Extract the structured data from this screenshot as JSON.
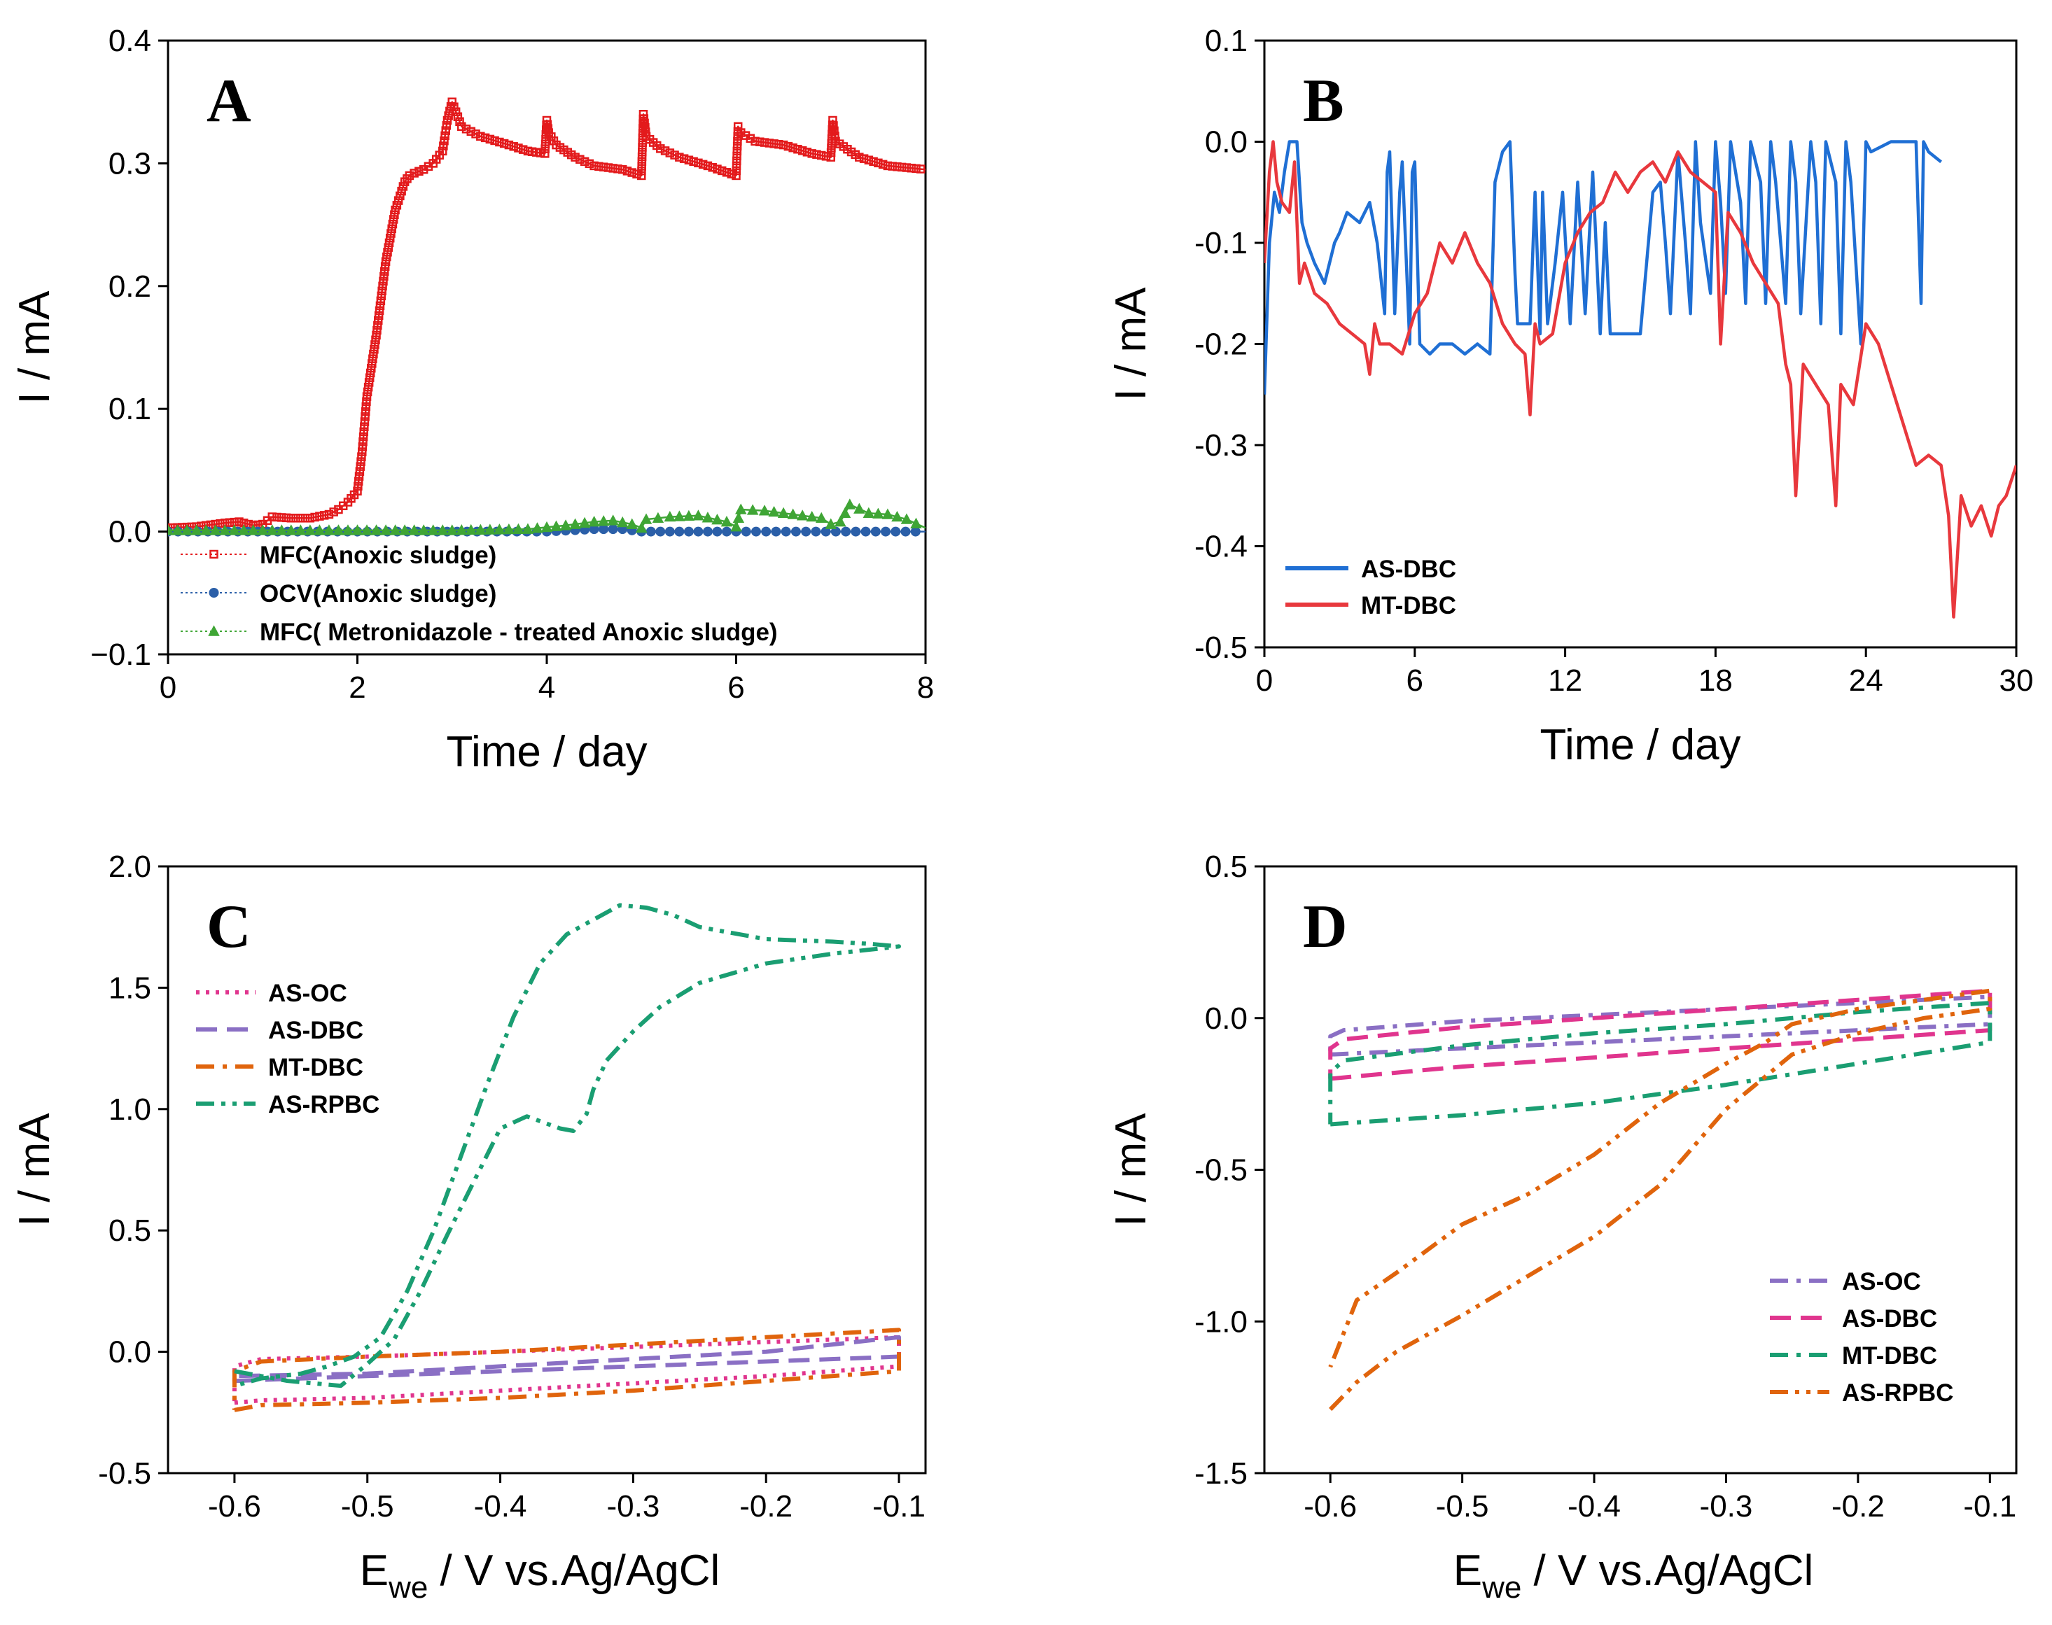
{
  "chart_data": [
    {
      "panel": "A",
      "type": "line",
      "xlabel": "Time / day",
      "ylabel": "I / mA",
      "xlim": [
        0,
        8
      ],
      "ylim": [
        -0.1,
        0.4
      ],
      "xticks": [
        "0",
        "2",
        "4",
        "6",
        "8"
      ],
      "yticks": [
        "−0.1",
        "0.0",
        "0.1",
        "0.2",
        "0.3",
        "0.4"
      ],
      "legend_position": "bottom-left",
      "series": [
        {
          "name": "MFC(Anoxic sludge)",
          "color": "#e31a1c",
          "marker": "square",
          "x": [
            0,
            0.3,
            0.6,
            0.75,
            0.9,
            1.0,
            1.1,
            1.3,
            1.5,
            1.7,
            1.8,
            1.9,
            2.0,
            2.05,
            2.1,
            2.2,
            2.3,
            2.4,
            2.5,
            2.55,
            2.6,
            2.7,
            2.8,
            2.9,
            2.95,
            3.0,
            3.1,
            3.3,
            3.6,
            3.8,
            3.98,
            4.0,
            4.02,
            4.1,
            4.3,
            4.5,
            4.8,
            5.0,
            5.02,
            5.05,
            5.2,
            5.4,
            5.7,
            6.0,
            6.02,
            6.05,
            6.2,
            6.5,
            6.8,
            7.0,
            7.02,
            7.05,
            7.3,
            7.6,
            8.0
          ],
          "y": [
            0.003,
            0.004,
            0.007,
            0.008,
            0.005,
            0.006,
            0.012,
            0.011,
            0.011,
            0.014,
            0.018,
            0.024,
            0.033,
            0.065,
            0.11,
            0.16,
            0.22,
            0.262,
            0.285,
            0.29,
            0.292,
            0.295,
            0.3,
            0.31,
            0.335,
            0.35,
            0.33,
            0.322,
            0.315,
            0.31,
            0.308,
            0.335,
            0.325,
            0.315,
            0.305,
            0.298,
            0.295,
            0.29,
            0.34,
            0.322,
            0.312,
            0.305,
            0.298,
            0.29,
            0.33,
            0.325,
            0.318,
            0.315,
            0.308,
            0.305,
            0.335,
            0.318,
            0.305,
            0.298,
            0.295
          ]
        },
        {
          "name": "OCV(Anoxic sludge)",
          "color": "#2b5fa8",
          "marker": "circle",
          "x": [
            0,
            2,
            4,
            4.5,
            4.8,
            5.0,
            6,
            8
          ],
          "y": [
            0.0,
            0.0,
            0.0,
            0.002,
            0.002,
            0.0,
            0.0,
            0.0
          ]
        },
        {
          "name": "MFC( Metronidazole - treated Anoxic sludge)",
          "color": "#3fa535",
          "marker": "triangle",
          "x": [
            0,
            1,
            2,
            3,
            3.8,
            4.2,
            4.5,
            4.7,
            4.9,
            5.0,
            5.05,
            5.3,
            5.6,
            5.9,
            6.0,
            6.05,
            6.3,
            6.6,
            6.9,
            7.0,
            7.1,
            7.2,
            7.4,
            7.6,
            7.8,
            8.0
          ],
          "y": [
            0.001,
            0.001,
            0.001,
            0.001,
            0.002,
            0.005,
            0.008,
            0.009,
            0.006,
            0.003,
            0.01,
            0.012,
            0.013,
            0.008,
            0.004,
            0.018,
            0.017,
            0.014,
            0.011,
            0.006,
            0.008,
            0.022,
            0.015,
            0.014,
            0.01,
            0.003
          ]
        }
      ]
    },
    {
      "panel": "B",
      "type": "line",
      "xlabel": "Time / day",
      "ylabel": "I / mA",
      "xlim": [
        0,
        30
      ],
      "ylim": [
        -0.5,
        0.1
      ],
      "xticks": [
        "0",
        "6",
        "12",
        "18",
        "24",
        "30"
      ],
      "yticks": [
        "-0.5",
        "-0.4",
        "-0.3",
        "-0.2",
        "-0.1",
        "0.0",
        "0.1"
      ],
      "legend_position": "bottom-left",
      "series": [
        {
          "name": "AS-DBC",
          "color": "#1f6fd4",
          "x": [
            0,
            0.2,
            0.4,
            0.6,
            0.8,
            1.0,
            1.1,
            1.3,
            1.5,
            1.7,
            2.0,
            2.4,
            2.8,
            3.0,
            3.3,
            3.8,
            4.2,
            4.5,
            4.8,
            4.9,
            5.0,
            5.2,
            5.4,
            5.5,
            5.8,
            5.9,
            6.0,
            6.2,
            6.6,
            7.0,
            7.5,
            8.0,
            8.5,
            9.0,
            9.2,
            9.5,
            9.8,
            10.0,
            10.1,
            10.3,
            10.6,
            10.8,
            11.0,
            11.1,
            11.3,
            11.6,
            11.9,
            12.2,
            12.5,
            12.8,
            13.1,
            13.4,
            13.6,
            13.8,
            14.0,
            14.5,
            15.0,
            15.5,
            15.8,
            16.0,
            16.2,
            16.5,
            16.8,
            17.0,
            17.2,
            17.4,
            17.8,
            18.0,
            18.2,
            18.4,
            18.6,
            19.0,
            19.2,
            19.4,
            19.8,
            20.0,
            20.2,
            20.4,
            20.8,
            21.0,
            21.2,
            21.4,
            21.8,
            22.0,
            22.2,
            22.4,
            22.8,
            23.0,
            23.2,
            23.4,
            23.8,
            24.0,
            24.2,
            25.0,
            26.0,
            26.2,
            26.3,
            26.5,
            27.0
          ],
          "y": [
            -0.25,
            -0.1,
            -0.05,
            -0.07,
            -0.03,
            0.0,
            0.0,
            0.0,
            -0.08,
            -0.1,
            -0.12,
            -0.14,
            -0.1,
            -0.09,
            -0.07,
            -0.08,
            -0.06,
            -0.1,
            -0.17,
            -0.03,
            -0.01,
            -0.17,
            -0.05,
            -0.02,
            -0.2,
            -0.03,
            -0.02,
            -0.2,
            -0.21,
            -0.2,
            -0.2,
            -0.21,
            -0.2,
            -0.21,
            -0.04,
            -0.01,
            0.0,
            -0.13,
            -0.18,
            -0.18,
            -0.18,
            -0.05,
            -0.19,
            -0.05,
            -0.18,
            -0.12,
            -0.05,
            -0.18,
            -0.04,
            -0.17,
            -0.03,
            -0.19,
            -0.08,
            -0.19,
            -0.19,
            -0.19,
            -0.19,
            -0.05,
            -0.04,
            -0.1,
            -0.17,
            -0.01,
            -0.1,
            -0.17,
            0.0,
            -0.08,
            -0.15,
            0.0,
            -0.06,
            -0.15,
            0.0,
            -0.06,
            -0.16,
            0.0,
            -0.04,
            -0.16,
            0.0,
            -0.04,
            -0.16,
            0.0,
            -0.04,
            -0.17,
            0.0,
            -0.04,
            -0.18,
            0.0,
            -0.04,
            -0.19,
            0.0,
            -0.04,
            -0.2,
            0.0,
            -0.01,
            0.0,
            0.0,
            -0.16,
            0.0,
            -0.01,
            -0.02
          ]
        },
        {
          "name": "MT-DBC",
          "color": "#e8383d",
          "x": [
            0,
            0.2,
            0.35,
            0.5,
            0.7,
            1.0,
            1.2,
            1.4,
            1.6,
            2.0,
            2.5,
            3.0,
            3.5,
            4.0,
            4.2,
            4.4,
            4.6,
            5.0,
            5.5,
            6.0,
            6.5,
            7.0,
            7.5,
            8.0,
            8.5,
            9.0,
            9.5,
            10.0,
            10.4,
            10.6,
            10.8,
            11.0,
            11.5,
            12.0,
            12.5,
            13.0,
            13.5,
            14.0,
            14.5,
            15.0,
            15.5,
            16.0,
            16.5,
            17.0,
            17.5,
            18.0,
            18.2,
            18.5,
            19.0,
            19.5,
            20.0,
            20.5,
            20.8,
            21.0,
            21.2,
            21.5,
            22.0,
            22.5,
            22.8,
            23.0,
            23.5,
            24.0,
            24.5,
            25.0,
            25.5,
            26.0,
            26.5,
            27.0,
            27.3,
            27.5,
            27.8,
            28.2,
            28.6,
            29.0,
            29.3,
            29.6,
            30.0
          ],
          "y": [
            -0.12,
            -0.03,
            0.0,
            -0.04,
            -0.06,
            -0.07,
            -0.02,
            -0.14,
            -0.12,
            -0.15,
            -0.16,
            -0.18,
            -0.19,
            -0.2,
            -0.23,
            -0.18,
            -0.2,
            -0.2,
            -0.21,
            -0.17,
            -0.15,
            -0.1,
            -0.12,
            -0.09,
            -0.12,
            -0.14,
            -0.18,
            -0.2,
            -0.21,
            -0.27,
            -0.18,
            -0.2,
            -0.19,
            -0.12,
            -0.09,
            -0.07,
            -0.06,
            -0.03,
            -0.05,
            -0.03,
            -0.02,
            -0.04,
            -0.01,
            -0.03,
            -0.04,
            -0.05,
            -0.2,
            -0.07,
            -0.09,
            -0.12,
            -0.14,
            -0.16,
            -0.22,
            -0.24,
            -0.35,
            -0.22,
            -0.24,
            -0.26,
            -0.36,
            -0.24,
            -0.26,
            -0.18,
            -0.2,
            -0.24,
            -0.28,
            -0.32,
            -0.31,
            -0.32,
            -0.37,
            -0.47,
            -0.35,
            -0.38,
            -0.36,
            -0.39,
            -0.36,
            -0.35,
            -0.32
          ]
        }
      ]
    },
    {
      "panel": "C",
      "type": "line",
      "xlabel": "Ewe / V vs.Ag/AgCl",
      "xlabel_main": "E",
      "xlabel_sub": "we",
      "xlabel_rest": " / V vs.Ag/AgCl",
      "ylabel": "I / mA",
      "xlim": [
        -0.65,
        -0.08
      ],
      "ylim": [
        -0.5,
        2.0
      ],
      "xticks": [
        "-0.6",
        "-0.5",
        "-0.4",
        "-0.3",
        "-0.2",
        "-0.1"
      ],
      "yticks": [
        "-0.5",
        "0.0",
        "0.5",
        "1.0",
        "1.5",
        "2.0"
      ],
      "legend_position": "top-left",
      "series": [
        {
          "name": "AS-OC",
          "color": "#e0358e",
          "dash": "dotted",
          "x": [
            -0.6,
            -0.58,
            -0.5,
            -0.4,
            -0.3,
            -0.2,
            -0.1,
            -0.1,
            -0.2,
            -0.3,
            -0.4,
            -0.5,
            -0.58,
            -0.6,
            -0.6
          ],
          "y": [
            -0.21,
            -0.2,
            -0.19,
            -0.16,
            -0.13,
            -0.1,
            -0.06,
            0.06,
            0.04,
            0.02,
            0.0,
            -0.02,
            -0.03,
            -0.06,
            -0.21
          ]
        },
        {
          "name": "AS-DBC",
          "color": "#8a6fc4",
          "dash": "dashed",
          "x": [
            -0.6,
            -0.5,
            -0.4,
            -0.3,
            -0.2,
            -0.1,
            -0.1,
            -0.2,
            -0.3,
            -0.4,
            -0.5,
            -0.6,
            -0.6
          ],
          "y": [
            -0.12,
            -0.1,
            -0.08,
            -0.06,
            -0.04,
            -0.02,
            0.06,
            0.0,
            -0.03,
            -0.06,
            -0.09,
            -0.1,
            -0.12
          ]
        },
        {
          "name": "MT-DBC",
          "color": "#e0640c",
          "dash": "dashdot",
          "x": [
            -0.6,
            -0.58,
            -0.5,
            -0.4,
            -0.3,
            -0.2,
            -0.1,
            -0.1,
            -0.2,
            -0.3,
            -0.4,
            -0.5,
            -0.58,
            -0.6,
            -0.6
          ],
          "y": [
            -0.24,
            -0.22,
            -0.21,
            -0.19,
            -0.16,
            -0.12,
            -0.08,
            0.09,
            0.06,
            0.03,
            0.0,
            -0.02,
            -0.04,
            -0.08,
            -0.24
          ]
        },
        {
          "name": "AS-RPBC",
          "color": "#1a9e72",
          "dash": "dashdotdot",
          "x": [
            -0.6,
            -0.58,
            -0.56,
            -0.54,
            -0.52,
            -0.5,
            -0.48,
            -0.46,
            -0.44,
            -0.42,
            -0.4,
            -0.38,
            -0.37,
            -0.355,
            -0.345,
            -0.335,
            -0.33,
            -0.32,
            -0.3,
            -0.28,
            -0.25,
            -0.2,
            -0.15,
            -0.1,
            -0.12,
            -0.15,
            -0.2,
            -0.25,
            -0.27,
            -0.29,
            -0.31,
            -0.33,
            -0.35,
            -0.37,
            -0.39,
            -0.41,
            -0.43,
            -0.45,
            -0.47,
            -0.49,
            -0.51,
            -0.53,
            -0.55,
            -0.58,
            -0.6
          ],
          "y": [
            -0.08,
            -0.1,
            -0.12,
            -0.13,
            -0.14,
            -0.05,
            0.05,
            0.25,
            0.48,
            0.7,
            0.92,
            0.97,
            0.95,
            0.92,
            0.91,
            0.98,
            1.08,
            1.2,
            1.32,
            1.42,
            1.52,
            1.6,
            1.64,
            1.67,
            1.68,
            1.69,
            1.7,
            1.75,
            1.8,
            1.83,
            1.84,
            1.78,
            1.72,
            1.6,
            1.38,
            1.1,
            0.8,
            0.5,
            0.25,
            0.06,
            -0.02,
            -0.06,
            -0.09,
            -0.11,
            -0.14
          ]
        }
      ]
    },
    {
      "panel": "D",
      "type": "line",
      "xlabel": "Ewe / V vs.Ag/AgCl",
      "xlabel_main": "E",
      "xlabel_sub": "we",
      "xlabel_rest": " / V vs.Ag/AgCl",
      "ylabel": "I / mA",
      "xlim": [
        -0.65,
        -0.08
      ],
      "ylim": [
        -1.5,
        0.5
      ],
      "xticks": [
        "-0.6",
        "-0.5",
        "-0.4",
        "-0.3",
        "-0.2",
        "-0.1"
      ],
      "yticks": [
        "-1.5",
        "-1.0",
        "-0.5",
        "0.0",
        "0.5"
      ],
      "legend_position": "bottom-right",
      "series": [
        {
          "name": "AS-OC",
          "color": "#8a6fc4",
          "dash": "dashdot",
          "x": [
            -0.6,
            -0.5,
            -0.4,
            -0.3,
            -0.2,
            -0.1,
            -0.1,
            -0.2,
            -0.3,
            -0.4,
            -0.5,
            -0.59,
            -0.6,
            -0.6
          ],
          "y": [
            -0.12,
            -0.1,
            -0.08,
            -0.06,
            -0.04,
            -0.02,
            0.07,
            0.05,
            0.03,
            0.01,
            -0.01,
            -0.04,
            -0.06,
            -0.12
          ]
        },
        {
          "name": "AS-DBC",
          "color": "#e0358e",
          "dash": "dashed",
          "x": [
            -0.6,
            -0.5,
            -0.4,
            -0.3,
            -0.2,
            -0.1,
            -0.1,
            -0.2,
            -0.3,
            -0.4,
            -0.5,
            -0.59,
            -0.6,
            -0.6
          ],
          "y": [
            -0.2,
            -0.16,
            -0.13,
            -0.1,
            -0.07,
            -0.04,
            0.09,
            0.06,
            0.03,
            0.0,
            -0.03,
            -0.07,
            -0.1,
            -0.2
          ]
        },
        {
          "name": "MT-DBC",
          "color": "#1a9e72",
          "dash": "dashdot",
          "x": [
            -0.6,
            -0.5,
            -0.4,
            -0.3,
            -0.2,
            -0.1,
            -0.1,
            -0.2,
            -0.3,
            -0.4,
            -0.5,
            -0.59,
            -0.6,
            -0.6
          ],
          "y": [
            -0.35,
            -0.32,
            -0.28,
            -0.22,
            -0.15,
            -0.08,
            0.05,
            0.02,
            -0.02,
            -0.05,
            -0.09,
            -0.14,
            -0.18,
            -0.35
          ]
        },
        {
          "name": "AS-RPBC",
          "color": "#e0640c",
          "dash": "dashdotdot",
          "x": [
            -0.6,
            -0.58,
            -0.55,
            -0.5,
            -0.45,
            -0.4,
            -0.35,
            -0.3,
            -0.25,
            -0.2,
            -0.15,
            -0.1,
            -0.1,
            -0.15,
            -0.2,
            -0.25,
            -0.27,
            -0.3,
            -0.35,
            -0.4,
            -0.45,
            -0.5,
            -0.55,
            -0.58,
            -0.6
          ],
          "y": [
            -1.29,
            -1.2,
            -1.1,
            -0.98,
            -0.85,
            -0.72,
            -0.55,
            -0.3,
            -0.12,
            -0.05,
            0.0,
            0.03,
            0.09,
            0.06,
            0.03,
            -0.02,
            -0.08,
            -0.15,
            -0.28,
            -0.45,
            -0.58,
            -0.68,
            -0.84,
            -0.93,
            -1.15
          ]
        }
      ]
    }
  ]
}
